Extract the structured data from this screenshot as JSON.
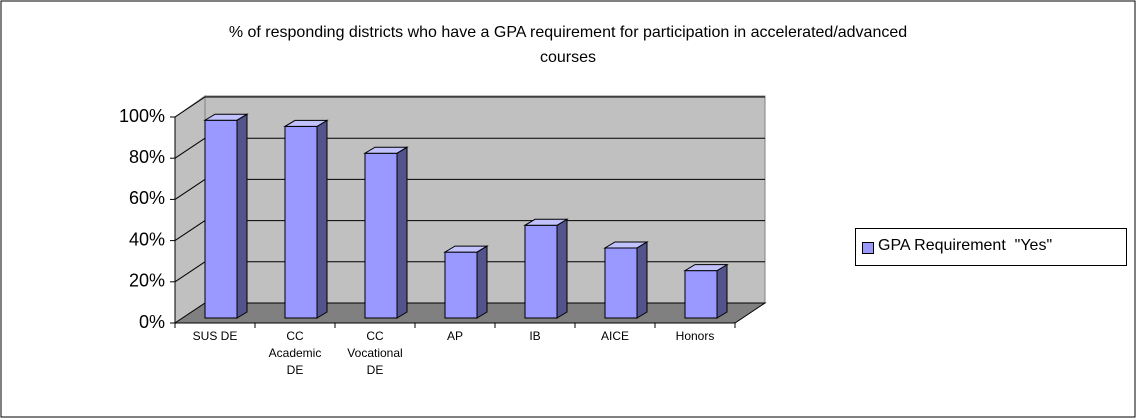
{
  "chart_data": {
    "type": "bar",
    "title": "% of responding districts who have a GPA requirement for participation in accelerated/advanced courses",
    "categories": [
      "SUS DE",
      "CC Academic DE",
      "CC Vocational DE",
      "AP",
      "IB",
      "AICE",
      "Honors"
    ],
    "series": [
      {
        "name": "GPA Requirement  \"Yes\"",
        "color": "#9999ff",
        "values": [
          96,
          93,
          80,
          32,
          45,
          34,
          23
        ]
      }
    ],
    "ylim": [
      0,
      100
    ],
    "yticks": [
      {
        "value": 0,
        "label": "0%"
      },
      {
        "value": 20,
        "label": "20%"
      },
      {
        "value": 40,
        "label": "40%"
      },
      {
        "value": 60,
        "label": "60%"
      },
      {
        "value": 80,
        "label": "80%"
      },
      {
        "value": 100,
        "label": "100%"
      }
    ],
    "grid": true,
    "legend": "right"
  }
}
